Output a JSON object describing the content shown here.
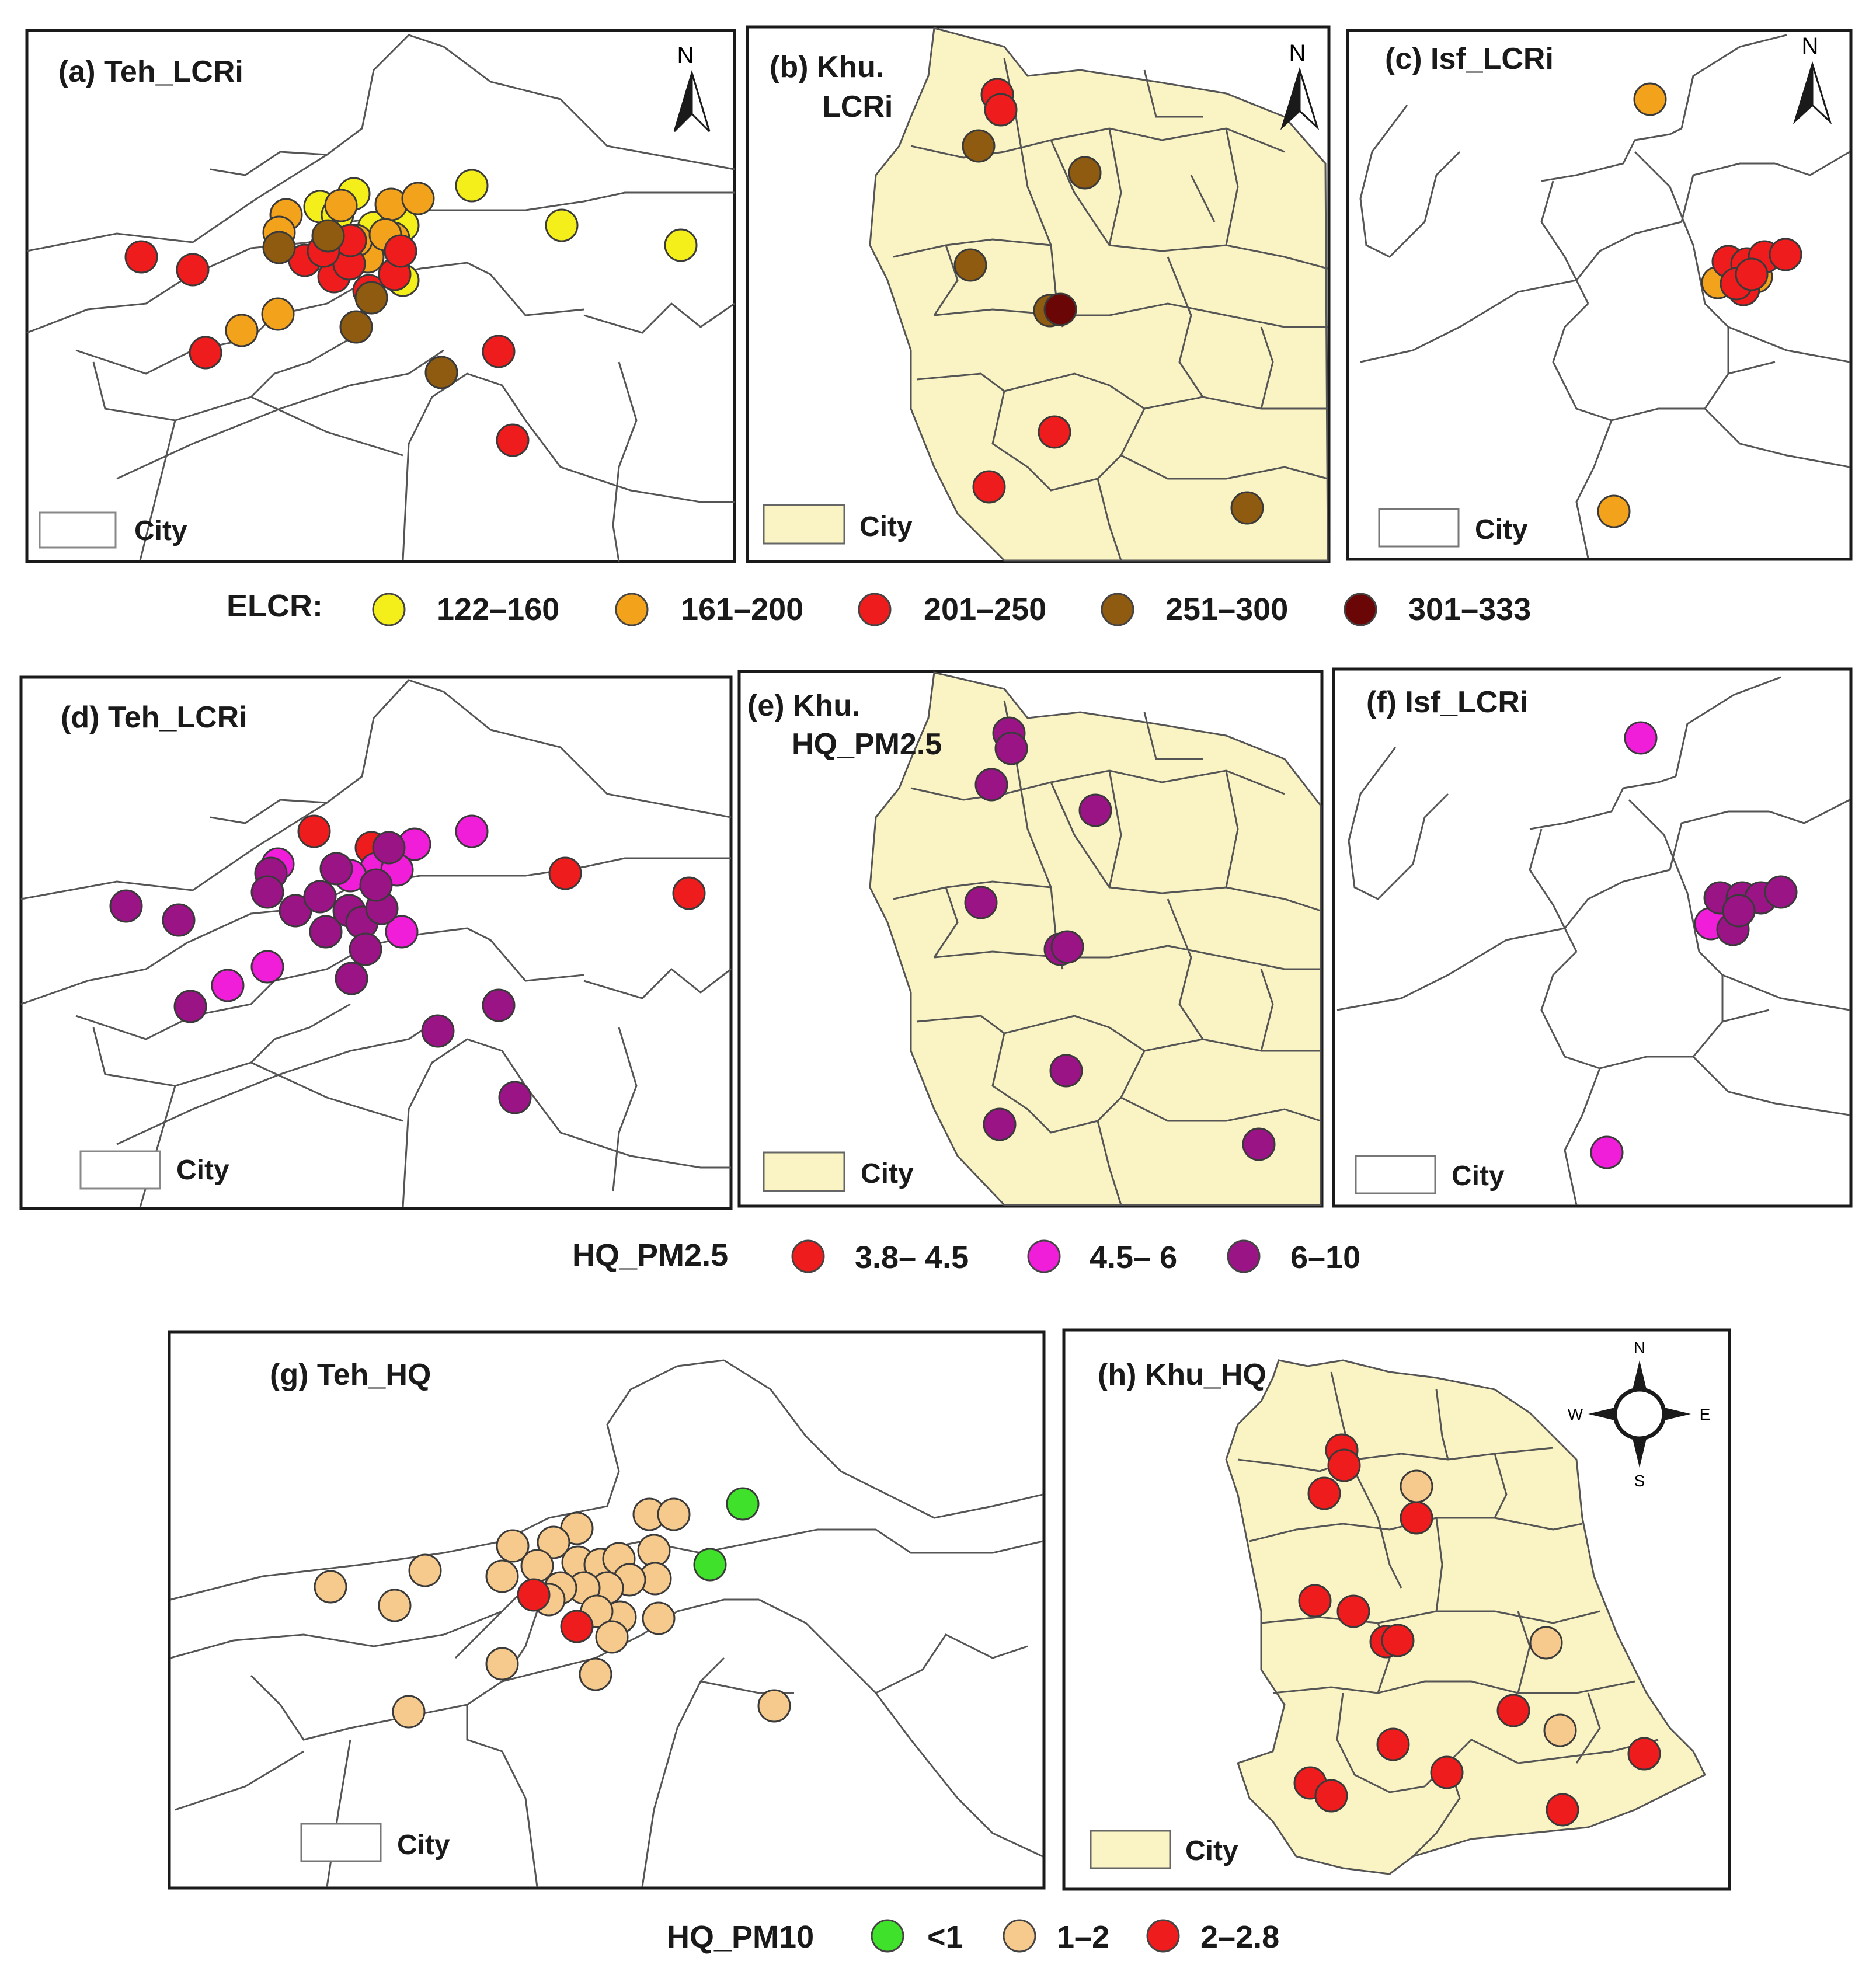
{
  "colors": {
    "yellow": "#f4ee1a",
    "orange": "#f3a21c",
    "red": "#ee1c1c",
    "brown": "#8e5b10",
    "darkred": "#6a0606",
    "pink": "#f01ed8",
    "purple": "#9a1485",
    "green": "#3fe12a",
    "tan": "#f6c98c",
    "city_fill": "#faf4c4",
    "boundary": "#555555"
  },
  "panels": {
    "a": {
      "title": "(a) Teh_LCRi",
      "city": "City",
      "north": "N"
    },
    "b": {
      "title1": "(b) Khu.",
      "title2": "LCRi",
      "city": "City",
      "north": "N"
    },
    "c": {
      "title": "(c) Isf_LCRi",
      "city": "City",
      "north": "N"
    },
    "d": {
      "title": "(d) Teh_LCRi",
      "city": "City"
    },
    "e": {
      "title1": "(e) Khu.",
      "title2": "HQ_PM2.5",
      "city": "City"
    },
    "f": {
      "title": "(f) Isf_LCRi",
      "city": "City"
    },
    "g": {
      "title": "(g) Teh_HQ",
      "city": "City"
    },
    "h": {
      "title": "(h) Khu_HQ",
      "city": "City",
      "compass": {
        "n": "N",
        "s": "S",
        "e": "E",
        "w": "W"
      }
    }
  },
  "legends": {
    "elcr": {
      "label": "ELCR:",
      "classes": [
        "122–160",
        "161–200",
        "201–250",
        "251–300",
        "301–333"
      ]
    },
    "pm25": {
      "label": "HQ_PM2.5",
      "classes": [
        "3.8– 4.5",
        "4.5– 6",
        "6–10"
      ]
    },
    "pm10": {
      "label": "HQ_PM10",
      "classes": [
        "<1",
        "1–2",
        "2–2.8"
      ]
    }
  }
}
